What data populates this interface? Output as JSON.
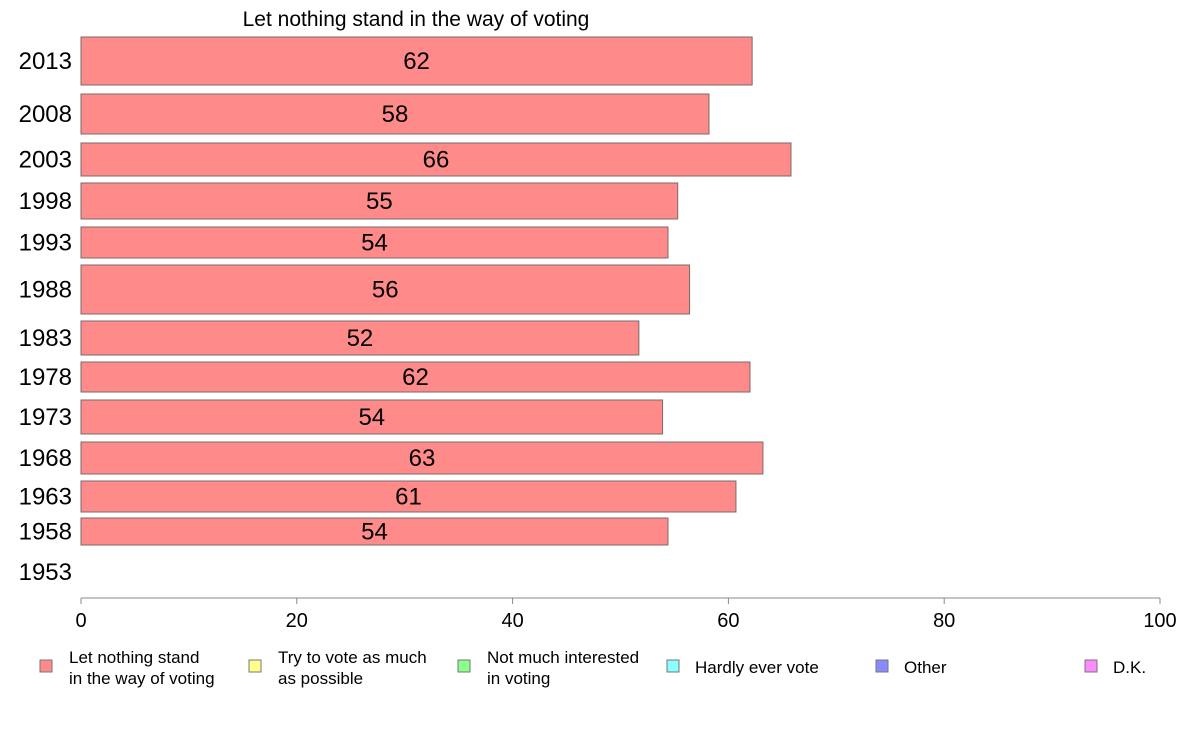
{
  "chart_data": {
    "type": "bar",
    "orientation": "horizontal",
    "title": "Let nothing stand in the way of voting",
    "categories": [
      "2013",
      "2008",
      "2003",
      "1998",
      "1993",
      "1988",
      "1983",
      "1978",
      "1973",
      "1968",
      "1963",
      "1958",
      "1953"
    ],
    "series": [
      {
        "name": "Let nothing stand in the way of voting",
        "color": "#ff8a8a",
        "values": [
          62.2,
          58.2,
          65.8,
          55.3,
          54.4,
          56.4,
          51.7,
          62.0,
          53.9,
          63.2,
          60.7,
          54.4,
          null
        ],
        "labels": [
          "62",
          "58",
          "66",
          "55",
          "54",
          "56",
          "52",
          "62",
          "54",
          "63",
          "61",
          "54",
          ""
        ]
      }
    ],
    "xlim": [
      0,
      100
    ],
    "xticks": [
      "0",
      "20",
      "40",
      "60",
      "80",
      "100"
    ],
    "legend": {
      "position": "bottom",
      "items": [
        {
          "lines": [
            "Let nothing stand",
            "in the way of voting"
          ],
          "color": "#ff8a8a"
        },
        {
          "lines": [
            "Try to vote as much",
            "as possible"
          ],
          "color": "#ffff8a"
        },
        {
          "lines": [
            "Not much interested",
            "in voting"
          ],
          "color": "#8aff8a"
        },
        {
          "lines": [
            "Hardly ever vote"
          ],
          "color": "#8affff"
        },
        {
          "lines": [
            "Other"
          ],
          "color": "#8a8aff"
        },
        {
          "lines": [
            "D.K."
          ],
          "color": "#ff8aff"
        }
      ]
    }
  }
}
